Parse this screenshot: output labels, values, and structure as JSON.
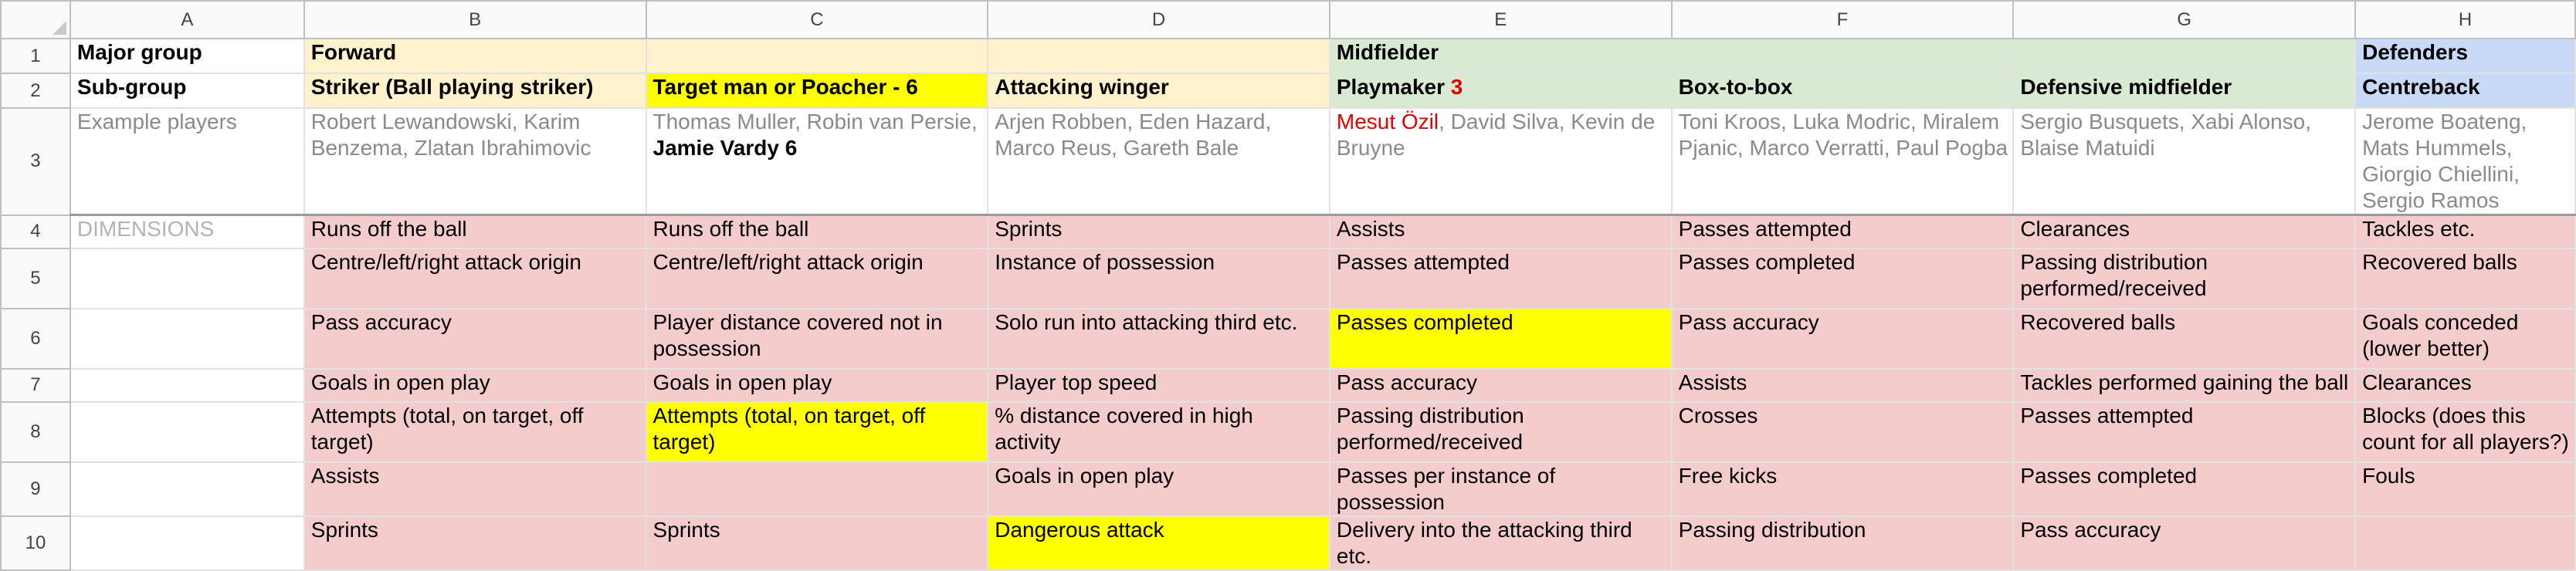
{
  "columns": [
    "A",
    "B",
    "C",
    "D",
    "E",
    "F",
    "G",
    "H"
  ],
  "rows": [
    "1",
    "2",
    "3",
    "4",
    "5",
    "6",
    "7",
    "8",
    "9",
    "10"
  ],
  "row1": {
    "a": "Major group",
    "b": "Forward",
    "e": "Midfielder",
    "h": "Defenders"
  },
  "row2": {
    "a": "Sub-group",
    "b": "Striker (Ball playing striker)",
    "c": "Target man or Poacher - 6",
    "d": "Attacking winger",
    "e_main": "Playmaker ",
    "e_count": "3",
    "f": "Box-to-box",
    "g": "Defensive midfielder",
    "h": "Centreback"
  },
  "row3": {
    "a": "Example players",
    "b": "Robert Lewandowski, Karim Benzema, Zlatan Ibrahimovic",
    "c_grey": "Thomas Muller, Robin van Persie, ",
    "c_bold": "Jamie Vardy 6",
    "d": "Arjen Robben, Eden Hazard, Marco Reus, Gareth Bale",
    "e_red": "Mesut Özil",
    "e_rest": ", David Silva, Kevin de Bruyne",
    "f": "Toni Kroos, Luka Modric, Miralem Pjanic, Marco Verratti, Paul Pogba",
    "g": "Sergio Busquets, Xabi Alonso, Blaise Matuidi",
    "h": "Jerome Boateng, Mats Hummels, Giorgio Chiellini, Sergio Ramos"
  },
  "row4": {
    "a": "DIMENSIONS",
    "b": "Runs off the ball",
    "c": "Runs off the ball",
    "d": "Sprints",
    "e": "Assists",
    "f": "Passes attempted",
    "g": "Clearances",
    "h": "Tackles etc."
  },
  "row5": {
    "b": "Centre/left/right attack origin",
    "c": "Centre/left/right attack origin",
    "d": "Instance of possession",
    "e": "Passes attempted",
    "f": "Passes completed",
    "g": "Passing distribution performed/received",
    "h": "Recovered balls"
  },
  "row6": {
    "b": "Pass accuracy",
    "c": "Player distance covered not in possession",
    "d": "Solo run into attacking third etc.",
    "e": "Passes completed",
    "f": "Pass accuracy",
    "g": "Recovered balls",
    "h": "Goals conceded (lower better)"
  },
  "row7": {
    "b": "Goals in open play",
    "c": "Goals in open play",
    "d": "Player top speed",
    "e": "Pass accuracy",
    "f": "Assists",
    "g": "Tackles performed gaining the ball",
    "h": "Clearances"
  },
  "row8": {
    "b": "Attempts (total, on target, off target)",
    "c": "Attempts (total, on target, off target)",
    "d": "% distance covered in high activity",
    "e": "Passing distribution performed/received",
    "f": "Crosses",
    "g": "Passes attempted",
    "h": "Blocks (does this count for all players?)"
  },
  "row9": {
    "b": "Assists",
    "c": "",
    "d": "Goals in open play",
    "e": "Passes per instance of possession",
    "f": "Free kicks",
    "g": "Passes completed",
    "h": "Fouls"
  },
  "row10": {
    "b": "Sprints",
    "c": "Sprints",
    "d": "Dangerous attack",
    "e": "Delivery into the attacking third etc.",
    "f": "Passing distribution",
    "g": "Pass accuracy",
    "h": ""
  }
}
